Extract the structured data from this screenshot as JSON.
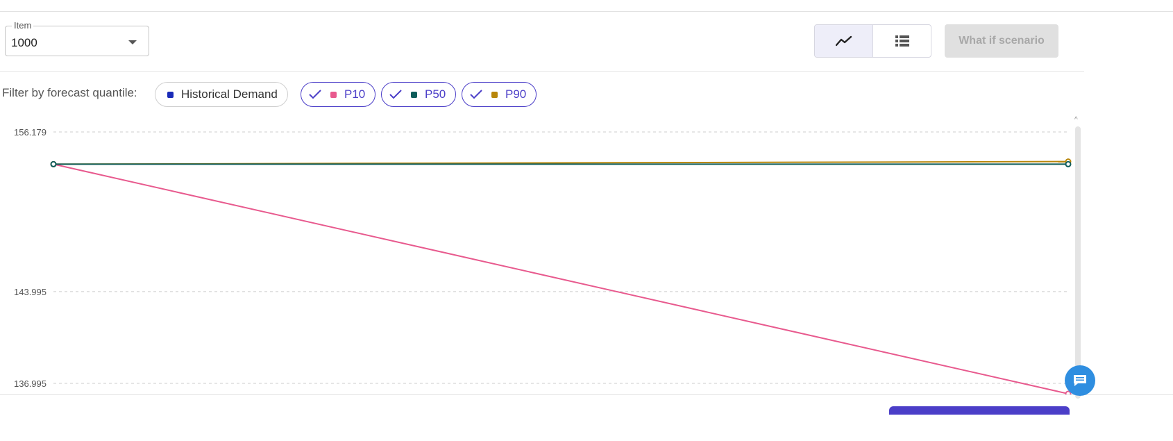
{
  "item_select": {
    "label": "Item",
    "value": "1000"
  },
  "view_toggle": {
    "chart_icon": "line-chart-icon",
    "table_icon": "list-icon"
  },
  "whatif_button": {
    "label": "What if scenario"
  },
  "filter": {
    "label": "Filter by forecast quantile:",
    "chips": [
      {
        "label": "Historical Demand",
        "color": "#1a2bb8",
        "selected": false
      },
      {
        "label": "P10",
        "color": "#e85a8e",
        "selected": true
      },
      {
        "label": "P50",
        "color": "#0d5c5a",
        "selected": true
      },
      {
        "label": "P90",
        "color": "#b8860b",
        "selected": true
      }
    ]
  },
  "chart_data": {
    "type": "line",
    "x": [
      0,
      1
    ],
    "y_ticks": [
      "156.179",
      "143.995",
      "136.995"
    ],
    "ylim": [
      136.995,
      156.179
    ],
    "grid": true,
    "series": [
      {
        "name": "P10",
        "color": "#e85a8e",
        "values": [
          153.72,
          136.2
        ]
      },
      {
        "name": "P90",
        "color": "#b8860b",
        "values": [
          153.72,
          153.92
        ]
      },
      {
        "name": "P50",
        "color": "#0d5c5a",
        "values": [
          153.72,
          153.72
        ]
      }
    ]
  },
  "chat_icon": "chat-icon"
}
